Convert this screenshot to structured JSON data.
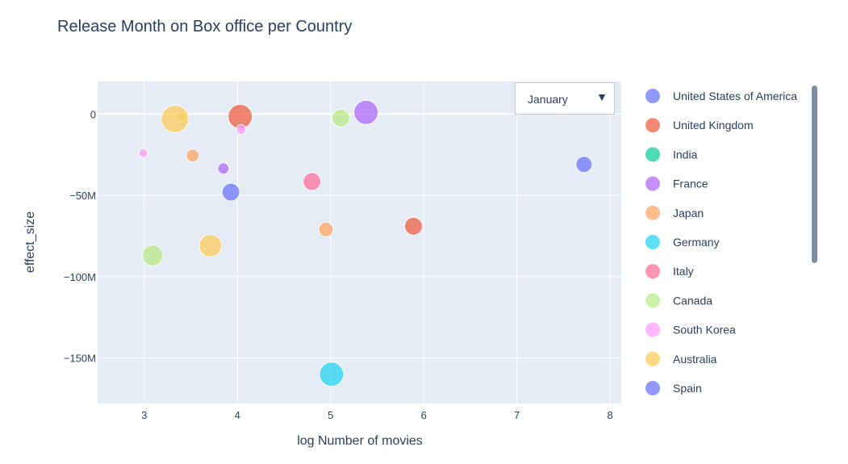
{
  "chart_data": {
    "type": "scatter",
    "title": "Release Month on Box office per Country",
    "xlabel": "log Number of movies",
    "ylabel": "effect_size",
    "xlim": [
      2.5,
      8.12
    ],
    "ylim": [
      -178000000,
      20000000
    ],
    "x_ticks": [
      3,
      4,
      5,
      6,
      7,
      8
    ],
    "x_tick_labels": [
      "3",
      "4",
      "5",
      "6",
      "7",
      "8"
    ],
    "y_ticks": [
      0,
      -50000000,
      -100000000,
      -150000000
    ],
    "y_tick_labels": [
      "0",
      "−50M",
      "−100M",
      "−150M"
    ],
    "grid": true,
    "legend_position": "right",
    "series": [
      {
        "name": "United States of America",
        "color": "#636efa",
        "points": [
          {
            "x": 7.72,
            "y": -31000000,
            "size": 20
          }
        ]
      },
      {
        "name": "United Kingdom",
        "color": "#EF553B",
        "points": [
          {
            "x": 4.03,
            "y": -1500000,
            "size": 30
          },
          {
            "x": 5.89,
            "y": -69000000,
            "size": 22
          }
        ]
      },
      {
        "name": "India",
        "color": "#00cc96",
        "points": []
      },
      {
        "name": "France",
        "color": "#ab63fa",
        "points": [
          {
            "x": 5.38,
            "y": 1000000,
            "size": 30
          },
          {
            "x": 3.85,
            "y": -33500000,
            "size": 14
          }
        ]
      },
      {
        "name": "Japan",
        "color": "#FFA15A",
        "points": [
          {
            "x": 3.52,
            "y": -25500000,
            "size": 16
          },
          {
            "x": 4.95,
            "y": -71000000,
            "size": 18
          }
        ]
      },
      {
        "name": "Germany",
        "color": "#19d3f3",
        "points": [
          {
            "x": 5.01,
            "y": -160000000,
            "size": 30
          }
        ]
      },
      {
        "name": "Italy",
        "color": "#FF6692",
        "points": [
          {
            "x": 4.8,
            "y": -41500000,
            "size": 22
          }
        ]
      },
      {
        "name": "Canada",
        "color": "#B6E880",
        "points": [
          {
            "x": 3.09,
            "y": -87000000,
            "size": 26
          },
          {
            "x": 5.11,
            "y": -2500000,
            "size": 22
          },
          {
            "x": 3.4,
            "y": -2000000,
            "size": 12
          }
        ]
      },
      {
        "name": "South Korea",
        "color": "#FF97FF",
        "points": [
          {
            "x": 2.99,
            "y": -24000000,
            "size": 11
          },
          {
            "x": 4.04,
            "y": -9500000,
            "size": 12
          }
        ]
      },
      {
        "name": "Australia",
        "color": "#FECB52",
        "points": [
          {
            "x": 3.33,
            "y": -3000000,
            "size": 34
          },
          {
            "x": 3.71,
            "y": -81000000,
            "size": 28
          }
        ]
      },
      {
        "name": "Spain",
        "color": "#636efa",
        "points": [
          {
            "x": 3.93,
            "y": -48000000,
            "size": 22
          }
        ]
      }
    ]
  },
  "dropdown": {
    "selected": "January",
    "arrow": "▼"
  },
  "colors": {
    "plot_bg": "#E5ECF6",
    "grid": "#ffffff",
    "text": "#2a3f5f"
  }
}
